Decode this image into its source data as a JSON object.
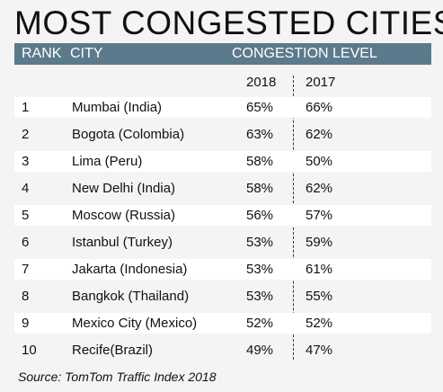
{
  "title": "MOST CONGESTED CITIES",
  "header": {
    "rank": "RANK",
    "city": "CITY",
    "level": "CONGESTION LEVEL"
  },
  "years": [
    "2018",
    "2017"
  ],
  "source": "Source: TomTom Traffic Index 2018",
  "chart_data": {
    "type": "table",
    "title": "MOST CONGESTED CITIES",
    "columns": [
      "RANK",
      "CITY",
      "2018",
      "2017"
    ],
    "rows": [
      {
        "rank": "1",
        "city": "Mumbai (India)",
        "v2018": "65%",
        "v2017": "66%"
      },
      {
        "rank": "2",
        "city": "Bogota  (Colombia)",
        "v2018": "63%",
        "v2017": "62%"
      },
      {
        "rank": "3",
        "city": "Lima (Peru)",
        "v2018": "58%",
        "v2017": "50%"
      },
      {
        "rank": "4",
        "city": "New Delhi (India)",
        "v2018": "58%",
        "v2017": "62%"
      },
      {
        "rank": "5",
        "city": "Moscow (Russia)",
        "v2018": "56%",
        "v2017": "57%"
      },
      {
        "rank": "6",
        "city": "Istanbul (Turkey)",
        "v2018": "53%",
        "v2017": "59%"
      },
      {
        "rank": "7",
        "city": "Jakarta (Indonesia)",
        "v2018": "53%",
        "v2017": "61%"
      },
      {
        "rank": "8",
        "city": "Bangkok (Thailand)",
        "v2018": "53%",
        "v2017": "55%"
      },
      {
        "rank": "9",
        "city": "Mexico City (Mexico)",
        "v2018": "52%",
        "v2017": "52%"
      },
      {
        "rank": "10",
        "city": "Recife(Brazil)",
        "v2018": "49%",
        "v2017": "47%"
      }
    ]
  }
}
